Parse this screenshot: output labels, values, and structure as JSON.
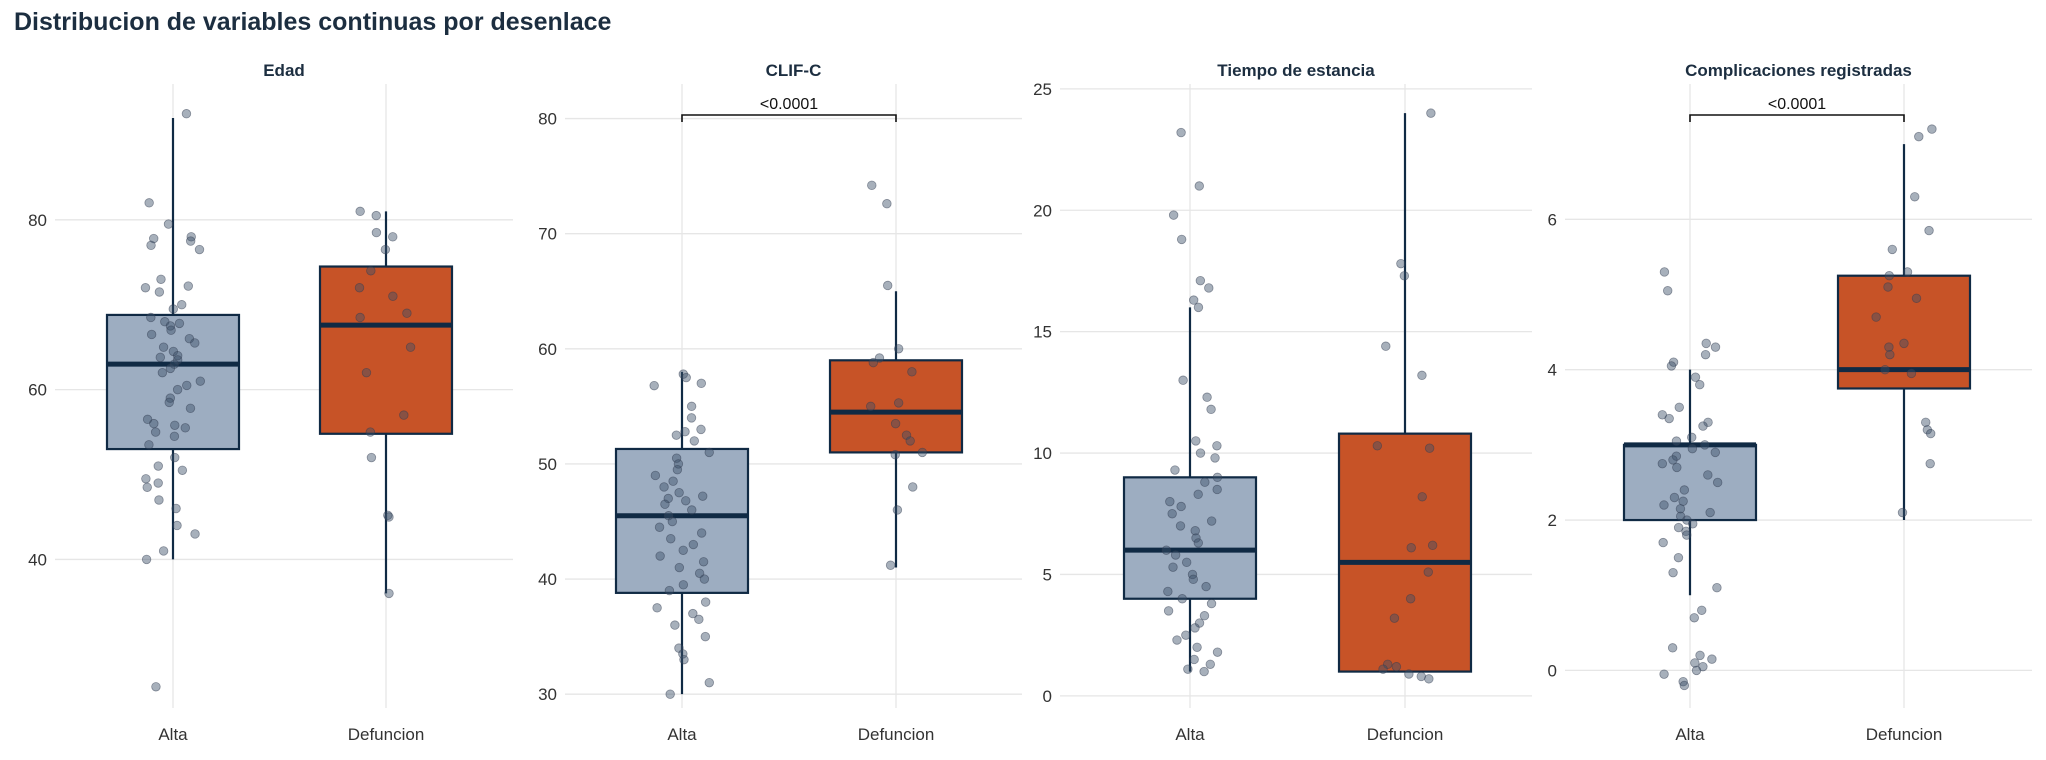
{
  "title": "Distribucion de variables continuas por desenlace",
  "colors": {
    "alta": "#9dadc1",
    "defuncion": "#c75327",
    "dark": "#102a44",
    "grid": "#e6e6e6",
    "text": "#333333"
  },
  "chart_data": [
    {
      "type": "box",
      "title": "Edad",
      "categories": [
        "Alta",
        "Defuncion"
      ],
      "ylim": [
        22.5,
        96
      ],
      "yticks": [
        "40",
        "60",
        "80"
      ],
      "boxes": [
        {
          "category": "Alta",
          "q1": 53,
          "median": 63,
          "q3": 68.8,
          "whisker_low": 40,
          "whisker_high": 92
        },
        {
          "category": "Defuncion",
          "q1": 54.8,
          "median": 67.6,
          "q3": 74.5,
          "whisker_low": 36,
          "whisker_high": 81
        }
      ],
      "significance": null,
      "points": [
        [
          92.5,
          82,
          79.5,
          78,
          77.8,
          77.5,
          77,
          76.5,
          73,
          72.2,
          72,
          71.5,
          70,
          69.5,
          68.5,
          68,
          67.8,
          67.5,
          67,
          66.5,
          66,
          65.5,
          65,
          64.5,
          64,
          63.8,
          63.5,
          63,
          62.5,
          62,
          61,
          60.5,
          60,
          59,
          58.5,
          57.8,
          56.5,
          56,
          55.8,
          55.5,
          55,
          54.5,
          53.5,
          52,
          51,
          50.5,
          49.5,
          49,
          48.5,
          47,
          46,
          44,
          43,
          41,
          40,
          25
        ],
        [
          81,
          80.5,
          78.5,
          78,
          76.5,
          74,
          72,
          71,
          69,
          68.5,
          65,
          62,
          57,
          55,
          52,
          45.2,
          45,
          36
        ]
      ]
    },
    {
      "type": "box",
      "title": "CLIF-C",
      "categories": [
        "Alta",
        "Defuncion"
      ],
      "ylim": [
        28.8,
        83
      ],
      "yticks": [
        "30",
        "40",
        "50",
        "60",
        "70",
        "80"
      ],
      "boxes": [
        {
          "category": "Alta",
          "q1": 38.8,
          "median": 45.5,
          "q3": 51.3,
          "whisker_low": 30,
          "whisker_high": 58
        },
        {
          "category": "Defuncion",
          "q1": 51,
          "median": 54.5,
          "q3": 59,
          "whisker_low": 41,
          "whisker_high": 65
        }
      ],
      "significance": "<0.0001",
      "points": [
        [
          57.8,
          57.5,
          57,
          56.8,
          55,
          54,
          53,
          52.8,
          52.5,
          52,
          51,
          50.5,
          50,
          49.5,
          49,
          48.5,
          48,
          47.5,
          47.2,
          47,
          46.8,
          46.5,
          46,
          45.5,
          45,
          44.5,
          44,
          43.5,
          43,
          42.5,
          42,
          41.5,
          41,
          40.5,
          40,
          39.5,
          39,
          38,
          37.5,
          37,
          36.5,
          36,
          35,
          34,
          33.5,
          33,
          31,
          30
        ],
        [
          74.2,
          72.6,
          65.5,
          60,
          59.2,
          58.8,
          58,
          55.3,
          55,
          53.5,
          52.5,
          52,
          51,
          50.8,
          48,
          46,
          41.2
        ]
      ]
    },
    {
      "type": "box",
      "title": "Tiempo de estancia",
      "categories": [
        "Alta",
        "Defuncion"
      ],
      "ylim": [
        -0.5,
        25.2
      ],
      "yticks": [
        "0",
        "5",
        "10",
        "15",
        "20",
        "25"
      ],
      "boxes": [
        {
          "category": "Alta",
          "q1": 4,
          "median": 6,
          "q3": 9,
          "whisker_low": 1,
          "whisker_high": 16
        },
        {
          "category": "Defuncion",
          "q1": 1,
          "median": 5.5,
          "q3": 10.8,
          "whisker_low": 1,
          "whisker_high": 24
        }
      ],
      "significance": null,
      "points": [
        [
          23.2,
          21,
          19.8,
          18.8,
          17.1,
          16.8,
          16.3,
          16,
          13,
          12.3,
          11.8,
          10.5,
          10.3,
          10,
          9.8,
          9.3,
          9,
          8.8,
          8.5,
          8.3,
          8,
          7.8,
          7.5,
          7.2,
          7,
          6.8,
          6.5,
          6.3,
          6,
          5.8,
          5.5,
          5.3,
          5,
          4.8,
          4.5,
          4.3,
          4,
          3.8,
          3.5,
          3.3,
          3,
          2.8,
          2.5,
          2.3,
          2,
          1.8,
          1.5,
          1.3,
          1.1,
          1
        ],
        [
          24,
          17.8,
          17.3,
          14.4,
          13.2,
          10.3,
          10.2,
          8.2,
          6.2,
          6.1,
          5.1,
          4,
          3.2,
          1.3,
          1.2,
          1.1,
          0.9,
          0.8,
          0.7
        ]
      ]
    },
    {
      "type": "box",
      "title": "Complicaciones registradas",
      "categories": [
        "Alta",
        "Defuncion"
      ],
      "ylim": [
        -0.5,
        7.8
      ],
      "yticks": [
        "0",
        "2",
        "4",
        "6"
      ],
      "boxes": [
        {
          "category": "Alta",
          "q1": 2,
          "median": 3,
          "q3": 3,
          "whisker_low": 1,
          "whisker_high": 4
        },
        {
          "category": "Defuncion",
          "q1": 3.75,
          "median": 4,
          "q3": 5.25,
          "whisker_low": 2,
          "whisker_high": 7
        }
      ],
      "significance": "<0.0001",
      "points": [
        [
          5.3,
          5.05,
          4.35,
          4.3,
          4.2,
          4.1,
          4.05,
          3.9,
          3.8,
          3.5,
          3.4,
          3.35,
          3.3,
          3.25,
          3.1,
          3.05,
          3,
          2.95,
          2.9,
          2.85,
          2.8,
          2.75,
          2.7,
          2.6,
          2.5,
          2.4,
          2.3,
          2.25,
          2.2,
          2.15,
          2.1,
          2.05,
          2,
          1.95,
          1.9,
          1.85,
          1.8,
          1.7,
          1.5,
          1.3,
          1.1,
          0.8,
          0.7,
          0.3,
          0.2,
          0.15,
          0.1,
          0.05,
          0,
          -0.05,
          -0.15,
          -0.2
        ],
        [
          7.2,
          7.1,
          6.3,
          5.85,
          5.6,
          5.3,
          5.25,
          5.1,
          4.95,
          4.7,
          4.35,
          4.3,
          4.2,
          4,
          3.95,
          3.3,
          3.2,
          3.15,
          2.75,
          2.1
        ]
      ]
    }
  ]
}
